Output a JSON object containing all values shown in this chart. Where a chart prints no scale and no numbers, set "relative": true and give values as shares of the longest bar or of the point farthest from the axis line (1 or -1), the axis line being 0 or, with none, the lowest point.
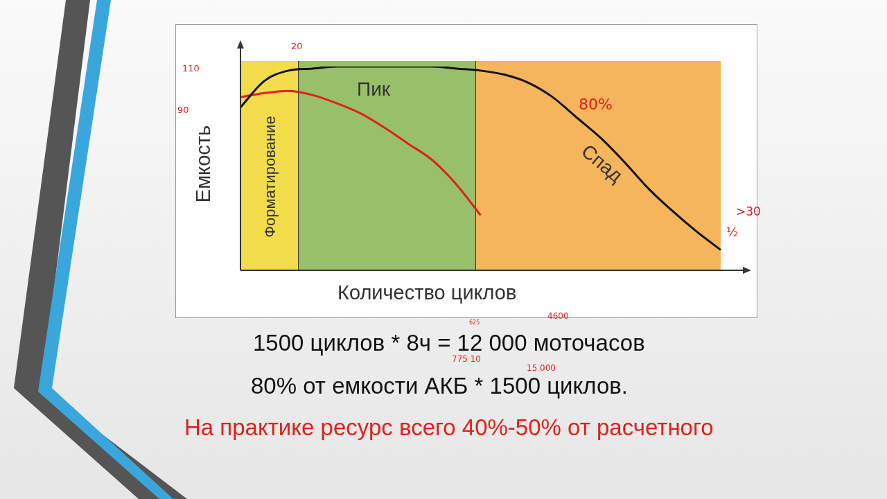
{
  "chart_data": {
    "type": "line",
    "relative": true,
    "xlabel": "Количество циклов",
    "ylabel": "Емкость",
    "marker": "none",
    "legend": false,
    "categories": [
      null,
      null,
      null,
      null,
      null,
      null,
      null,
      null,
      null,
      null,
      null,
      null,
      null,
      null,
      null,
      null,
      null,
      null,
      null,
      null,
      null
    ],
    "series": [
      {
        "color": "#111111",
        "values": [
          0.8,
          0.93,
          0.98,
          0.99,
          1,
          1,
          1,
          1,
          1,
          0.99,
          0.98,
          0.96,
          0.92,
          0.85,
          0.75,
          0.65,
          0.53,
          0.4,
          0.29,
          0.19,
          0.1
        ]
      },
      {
        "color": "#e0201c",
        "values": [
          0.85,
          0.87,
          0.88,
          0.86,
          0.82,
          0.77,
          0.7,
          0.62,
          0.54,
          0.42,
          0.27,
          null,
          null,
          null,
          null,
          null,
          null,
          null,
          null,
          null,
          null
        ]
      }
    ],
    "annotations": [
      "Форматирование",
      "Пик",
      "Спад",
      "110",
      "90",
      "20",
      "80%",
      ">30",
      "½",
      "1500 циклов * 8ч = 12 000 моточасов",
      "80% от емкости АКБ * 1500 циклов.",
      "На практике ресурс всего 40%-50% от расчетного",
      "625",
      "4600",
      "775 10",
      "15 000"
    ]
  }
}
